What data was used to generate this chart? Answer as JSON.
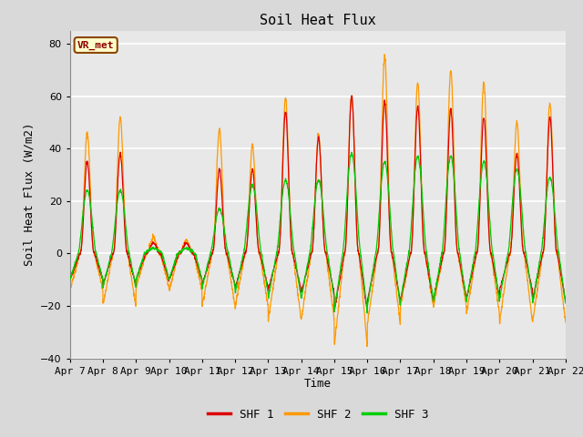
{
  "title": "Soil Heat Flux",
  "ylabel": "Soil Heat Flux (W/m2)",
  "xlabel": "Time",
  "ylim": [
    -40,
    85
  ],
  "yticks": [
    -40,
    -20,
    0,
    20,
    40,
    60,
    80
  ],
  "xtick_labels": [
    "Apr 7",
    "Apr 8",
    "Apr 9",
    "Apr 10",
    "Apr 11",
    "Apr 12",
    "Apr 13",
    "Apr 14",
    "Apr 15",
    "Apr 16",
    "Apr 17",
    "Apr 18",
    "Apr 19",
    "Apr 20",
    "Apr 21",
    "Apr 22"
  ],
  "colors": {
    "SHF 1": "#dd0000",
    "SHF 2": "#ff9900",
    "SHF 3": "#00cc00"
  },
  "legend_label": "VR_met",
  "background_outer": "#d9d9d9",
  "background_plot": "#e8e8e8",
  "grid_color": "#ffffff",
  "title_fontsize": 11,
  "axis_fontsize": 9,
  "tick_fontsize": 8,
  "shf1_peaks": [
    35,
    38,
    4,
    4,
    32,
    32,
    54,
    44,
    60,
    58,
    56,
    55,
    52,
    38,
    52
  ],
  "shf2_peaks": [
    46,
    52,
    6,
    5,
    47,
    41,
    59,
    45,
    60,
    75,
    65,
    70,
    65,
    50,
    57
  ],
  "shf3_peaks": [
    24,
    24,
    2,
    2,
    17,
    26,
    28,
    28,
    38,
    35,
    37,
    37,
    35,
    32,
    29
  ],
  "shf1_nights": [
    -10,
    -12,
    -10,
    -10,
    -12,
    -13,
    -14,
    -15,
    -22,
    -18,
    -18,
    -17,
    -17,
    -14,
    -18
  ],
  "shf2_nights": [
    -14,
    -20,
    -13,
    -14,
    -20,
    -20,
    -25,
    -25,
    -35,
    -27,
    -20,
    -20,
    -23,
    -26,
    -26
  ],
  "shf3_nights": [
    -10,
    -13,
    -10,
    -10,
    -13,
    -15,
    -17,
    -17,
    -22,
    -20,
    -18,
    -18,
    -18,
    -17,
    -19
  ]
}
